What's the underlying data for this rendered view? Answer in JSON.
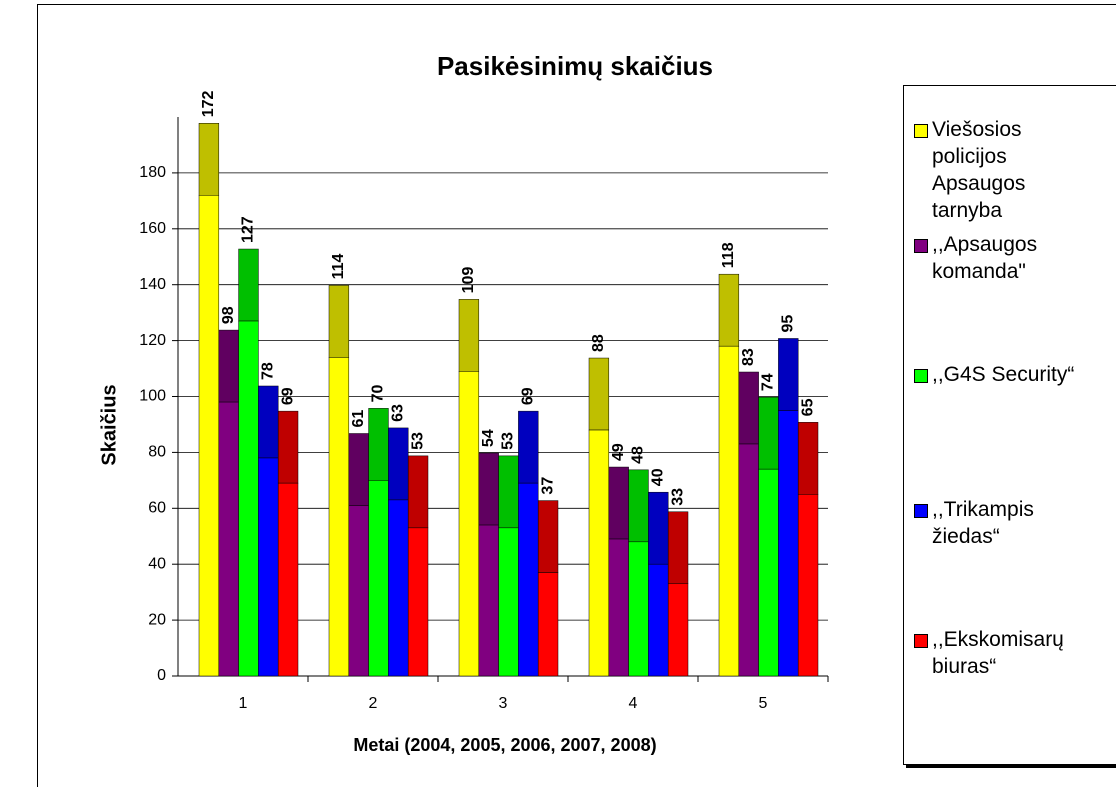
{
  "chart_data": {
    "type": "bar",
    "title": "Pasikėsinimų skaičius",
    "x_label": "Metai (2004, 2005, 2006, 2007, 2008)",
    "y_label": "Skaičius",
    "categories": [
      "1",
      "2",
      "3",
      "4",
      "5"
    ],
    "series": [
      {
        "name": "Viešosios policijos Apsaugos tarnyba",
        "color": "#ffff00",
        "values": [
          172,
          114,
          109,
          88,
          118
        ]
      },
      {
        "name": ",,Apsaugos komanda\"",
        "color": "#800080",
        "values": [
          98,
          61,
          54,
          49,
          83
        ]
      },
      {
        "name": ",,G4S Security“",
        "color": "#00ff00",
        "values": [
          127,
          70,
          53,
          48,
          74
        ]
      },
      {
        "name": ",,Trikampis žiedas“",
        "color": "#0000ff",
        "values": [
          78,
          63,
          69,
          40,
          95
        ]
      },
      {
        "name": ",,Ekskomisarų biuras“",
        "color": "#ff0000",
        "values": [
          69,
          53,
          37,
          33,
          65
        ]
      }
    ],
    "ylim": [
      0,
      200
    ],
    "yticks": [
      0,
      20,
      40,
      60,
      80,
      100,
      120,
      140,
      160,
      180
    ],
    "grid": true,
    "legend": "right"
  }
}
